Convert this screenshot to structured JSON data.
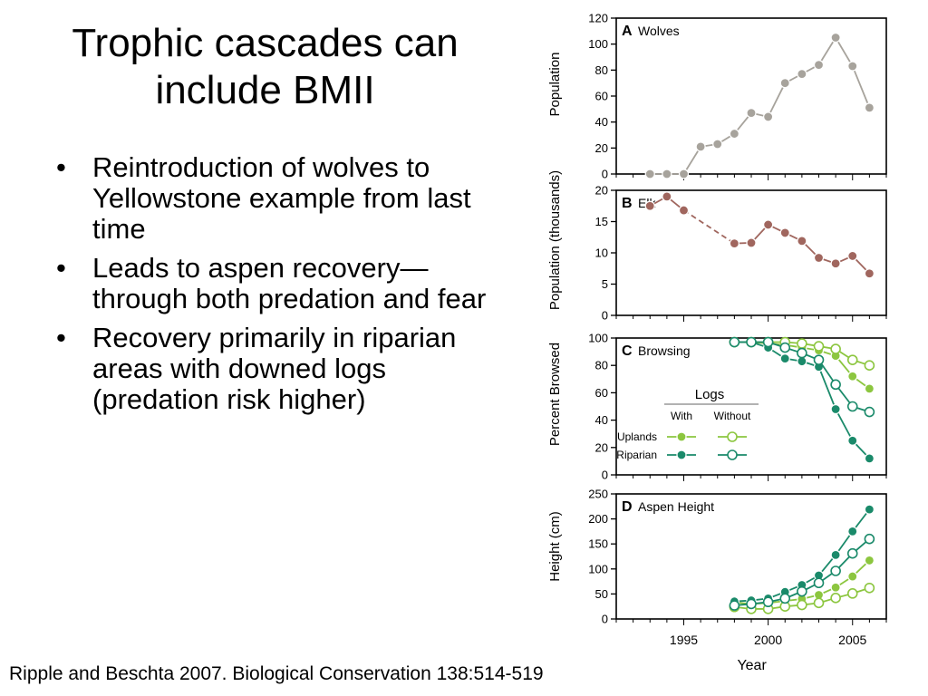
{
  "slide": {
    "title_lines": [
      "Trophic cascades can",
      "include BMII"
    ],
    "bullets": [
      "Reintroduction of wolves to Yellowstone example from last time",
      "Leads to aspen recovery—through both predation and fear",
      "Recovery primarily in riparian areas with downed logs (predation risk higher)"
    ],
    "bullet_symbol": "•",
    "citation": "Ripple and Beschta 2007.  Biological Conservation 138:514-519"
  },
  "chart_data": [
    {
      "type": "line",
      "panel": "A",
      "title": "Wolves",
      "ylabel": "Population",
      "ylim": [
        0,
        120
      ],
      "yticks": [
        0,
        20,
        40,
        60,
        80,
        100,
        120
      ],
      "xlim": [
        1991,
        2007
      ],
      "series": [
        {
          "color": "#a7a39c",
          "x": [
            1993,
            1994,
            1995,
            1996,
            1997,
            1998,
            1999,
            2000,
            2001,
            2002,
            2003,
            2004,
            2005,
            2006
          ],
          "y": [
            0,
            0,
            0,
            21,
            23,
            31,
            47,
            44,
            70,
            77,
            84,
            105,
            83,
            51
          ]
        }
      ]
    },
    {
      "type": "line",
      "panel": "B",
      "title": "Elk",
      "ylabel": "Population (thousands)",
      "ylim": [
        0,
        20
      ],
      "yticks": [
        0,
        5,
        10,
        15,
        20
      ],
      "xlim": [
        1991,
        2007
      ],
      "dashed_segment": [
        1995,
        1998
      ],
      "series": [
        {
          "color": "#a0665e",
          "x": [
            1993,
            1994,
            1995,
            1998,
            1999,
            2000,
            2001,
            2002,
            2003,
            2004,
            2005,
            2006
          ],
          "y": [
            17.5,
            19,
            16.8,
            11.5,
            11.6,
            14.5,
            13.2,
            11.9,
            9.2,
            8.3,
            9.5,
            6.7
          ]
        }
      ]
    },
    {
      "type": "line",
      "panel": "C",
      "title": "Browsing",
      "ylabel": "Percent Browsed",
      "ylim": [
        0,
        100
      ],
      "yticks": [
        0,
        20,
        40,
        60,
        80,
        100
      ],
      "xlim": [
        1991,
        2007
      ],
      "legend": {
        "title": "Logs",
        "columns": [
          "With",
          "Without"
        ],
        "rows": [
          "Uplands",
          "Riparian"
        ],
        "placement": "center"
      },
      "series": [
        {
          "color": "#8cc63f",
          "filled": true,
          "x": [
            1998,
            1999,
            2000,
            2001,
            2002,
            2003,
            2004,
            2005,
            2006
          ],
          "y": [
            97,
            97,
            96,
            95,
            93,
            91,
            87,
            72,
            63
          ]
        },
        {
          "color": "#8cc63f",
          "filled": false,
          "x": [
            1998,
            1999,
            2000,
            2001,
            2002,
            2003,
            2004,
            2005,
            2006
          ],
          "y": [
            97,
            97,
            97,
            97,
            96,
            94,
            92,
            84,
            80
          ]
        },
        {
          "color": "#1a8a6a",
          "filled": true,
          "x": [
            1998,
            1999,
            2000,
            2001,
            2002,
            2003,
            2004,
            2005,
            2006
          ],
          "y": [
            97,
            97,
            93,
            85,
            83,
            79,
            48,
            25,
            12
          ]
        },
        {
          "color": "#1a8a6a",
          "filled": false,
          "x": [
            1998,
            1999,
            2000,
            2001,
            2002,
            2003,
            2004,
            2005,
            2006
          ],
          "y": [
            97,
            97,
            97,
            93,
            89,
            84,
            66,
            50,
            46
          ]
        }
      ]
    },
    {
      "type": "line",
      "panel": "D",
      "title": "Aspen Height",
      "ylabel": "Height (cm)",
      "xlabel": "Year",
      "ylim": [
        0,
        250
      ],
      "yticks": [
        0,
        50,
        100,
        150,
        200,
        250
      ],
      "xlim": [
        1991,
        2007
      ],
      "xticks": [
        1995,
        2000,
        2005
      ],
      "series": [
        {
          "color": "#8cc63f",
          "filled": true,
          "x": [
            1998,
            1999,
            2000,
            2001,
            2002,
            2003,
            2004,
            2005,
            2006
          ],
          "y": [
            33,
            30,
            32,
            36,
            40,
            48,
            63,
            85,
            117
          ]
        },
        {
          "color": "#8cc63f",
          "filled": false,
          "x": [
            1998,
            1999,
            2000,
            2001,
            2002,
            2003,
            2004,
            2005,
            2006
          ],
          "y": [
            24,
            20,
            20,
            25,
            28,
            32,
            42,
            51,
            62
          ]
        },
        {
          "color": "#1a8a6a",
          "filled": true,
          "x": [
            1998,
            1999,
            2000,
            2001,
            2002,
            2003,
            2004,
            2005,
            2006
          ],
          "y": [
            35,
            37,
            41,
            54,
            68,
            87,
            128,
            175,
            219
          ]
        },
        {
          "color": "#1a8a6a",
          "filled": false,
          "x": [
            1998,
            1999,
            2000,
            2001,
            2002,
            2003,
            2004,
            2005,
            2006
          ],
          "y": [
            27,
            30,
            34,
            41,
            55,
            72,
            96,
            131,
            160
          ]
        }
      ]
    }
  ]
}
